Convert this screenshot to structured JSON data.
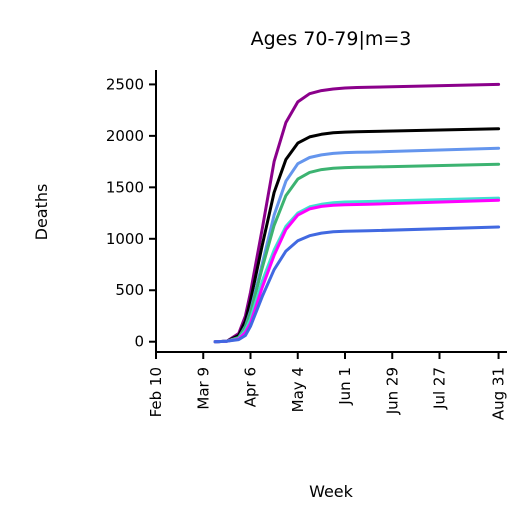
{
  "chart_data": {
    "type": "line",
    "title": "Ages 70-79|m=3",
    "xlabel": "Week",
    "ylabel": "Deaths",
    "x_unit": "days since Feb 10",
    "xlim": [
      0,
      208
    ],
    "ylim": [
      -100,
      2640
    ],
    "x_ticks": [
      {
        "day": 0,
        "label": "Feb 10"
      },
      {
        "day": 28,
        "label": "Mar 9"
      },
      {
        "day": 56,
        "label": "Apr 6"
      },
      {
        "day": 84,
        "label": "May 4"
      },
      {
        "day": 112,
        "label": "Jun 1"
      },
      {
        "day": 140,
        "label": "Jun 29"
      },
      {
        "day": 168,
        "label": "Jul 27"
      },
      {
        "day": 203,
        "label": "Aug 31"
      }
    ],
    "y_ticks": [
      0,
      500,
      1000,
      1500,
      2000,
      2500
    ],
    "grid": false,
    "legend": "none",
    "x": [
      35,
      42,
      49,
      53,
      56,
      63,
      70,
      77,
      84,
      91,
      98,
      105,
      112,
      119,
      126,
      203
    ],
    "series": [
      {
        "color": "#8B008B",
        "values": [
          0,
          5,
          80,
          250,
          480,
          1100,
          1750,
          2130,
          2330,
          2410,
          2440,
          2455,
          2465,
          2470,
          2472,
          2500
        ]
      },
      {
        "color": "#000000",
        "values": [
          0,
          5,
          60,
          200,
          400,
          940,
          1450,
          1770,
          1930,
          1990,
          2015,
          2030,
          2037,
          2040,
          2042,
          2070
        ]
      },
      {
        "color": "#6495ED",
        "values": [
          0,
          5,
          40,
          150,
          300,
          760,
          1230,
          1560,
          1730,
          1790,
          1815,
          1830,
          1837,
          1840,
          1842,
          1880
        ]
      },
      {
        "color": "#3CB371",
        "values": [
          0,
          5,
          40,
          140,
          280,
          720,
          1130,
          1420,
          1580,
          1645,
          1672,
          1685,
          1692,
          1695,
          1697,
          1725
        ]
      },
      {
        "color": "#40E0D0",
        "values": [
          0,
          5,
          30,
          110,
          220,
          590,
          890,
          1120,
          1250,
          1310,
          1335,
          1350,
          1357,
          1360,
          1362,
          1395
        ]
      },
      {
        "color": "#FF00FF",
        "values": [
          0,
          5,
          25,
          90,
          180,
          530,
          840,
          1090,
          1230,
          1290,
          1315,
          1325,
          1330,
          1333,
          1335,
          1375
        ]
      },
      {
        "color": "#4169E1",
        "values": [
          0,
          5,
          20,
          60,
          150,
          440,
          700,
          880,
          980,
          1030,
          1055,
          1068,
          1073,
          1076,
          1078,
          1115
        ]
      }
    ]
  }
}
